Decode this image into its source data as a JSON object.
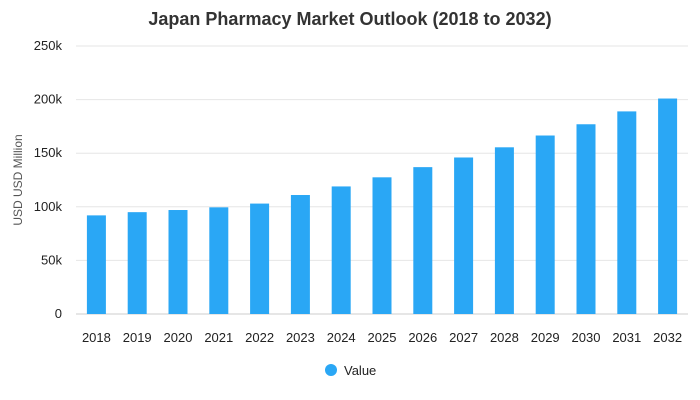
{
  "chart_data": {
    "type": "bar",
    "title": "Japan Pharmacy Market Outlook (2018 to 2032)",
    "xlabel": "",
    "ylabel": "USD USD Million",
    "categories": [
      "2018",
      "2019",
      "2020",
      "2021",
      "2022",
      "2023",
      "2024",
      "2025",
      "2026",
      "2027",
      "2028",
      "2029",
      "2030",
      "2031",
      "2032"
    ],
    "series": [
      {
        "name": "Value",
        "color": "#2aa7f5",
        "values": [
          92000,
          95000,
          97000,
          99500,
          103000,
          111000,
          119000,
          127500,
          137000,
          146000,
          155500,
          166500,
          177000,
          189000,
          201000
        ]
      }
    ],
    "ylim": [
      0,
      250000
    ],
    "yticks": [
      0,
      50000,
      100000,
      150000,
      200000,
      250000
    ],
    "ytick_labels": [
      "0",
      "50k",
      "100k",
      "150k",
      "200k",
      "250k"
    ],
    "grid": true,
    "legend_position": "bottom-center"
  }
}
